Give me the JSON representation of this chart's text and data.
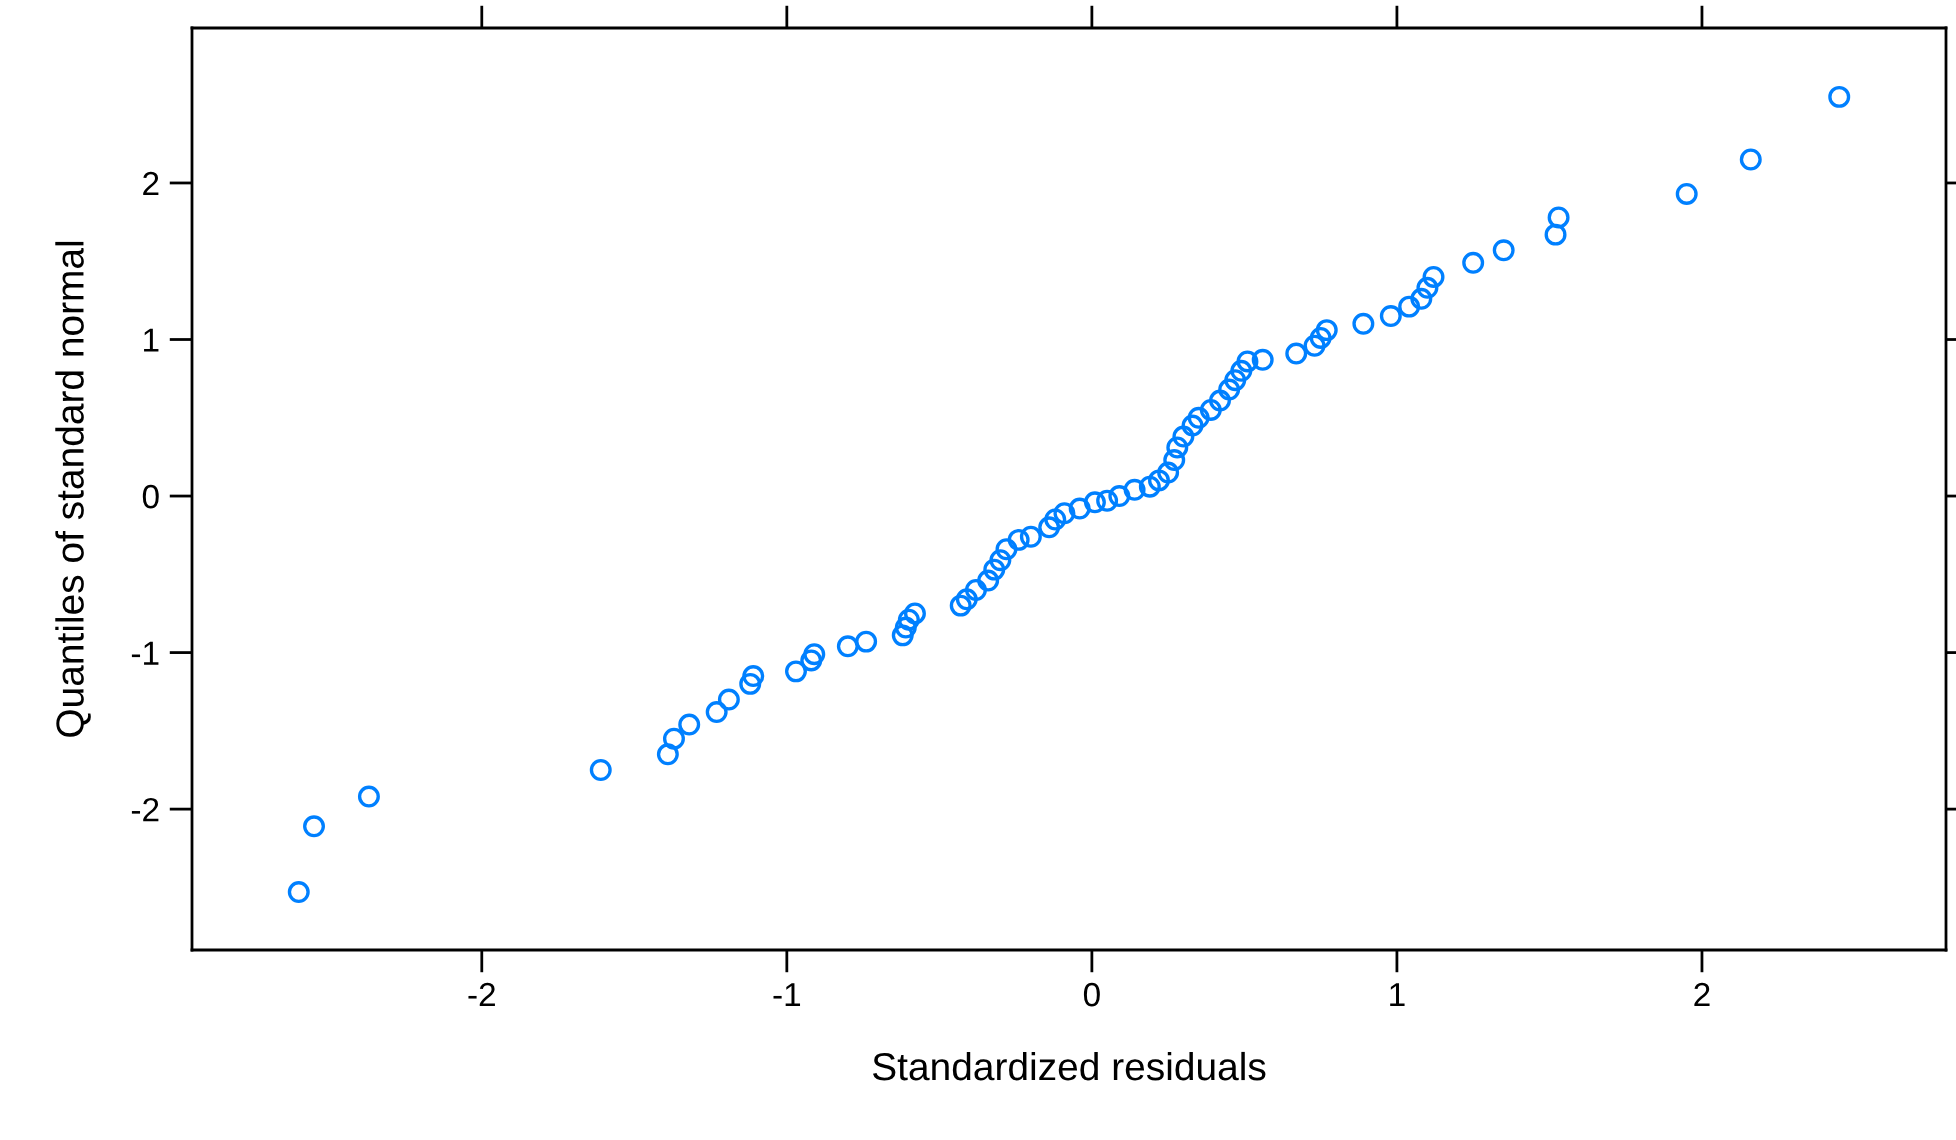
{
  "chart_data": {
    "type": "scatter",
    "xlabel": "Standardized residuals",
    "ylabel": "Quantiles of standard normal",
    "xlim": [
      -2.95,
      2.8
    ],
    "ylim": [
      -2.9,
      2.99
    ],
    "xticks": [
      -2,
      -1,
      0,
      1,
      2
    ],
    "yticks": [
      -2,
      -1,
      0,
      1,
      2
    ],
    "grid": false,
    "marker": "circle",
    "series": [
      {
        "color": "#0080ff",
        "x": [
          -2.6,
          -2.55,
          -2.37,
          -1.61,
          -1.39,
          -1.37,
          -1.32,
          -1.23,
          -1.19,
          -1.12,
          -1.11,
          -0.97,
          -0.92,
          -0.91,
          -0.8,
          -0.74,
          -0.62,
          -0.61,
          -0.6,
          -0.58,
          -0.43,
          -0.41,
          -0.38,
          -0.34,
          -0.32,
          -0.3,
          -0.28,
          -0.24,
          -0.2,
          -0.14,
          -0.12,
          -0.09,
          -0.04,
          0.01,
          0.05,
          0.09,
          0.14,
          0.19,
          0.22,
          0.25,
          0.27,
          0.28,
          0.3,
          0.33,
          0.35,
          0.39,
          0.42,
          0.45,
          0.47,
          0.49,
          0.51,
          0.56,
          0.67,
          0.73,
          0.75,
          0.77,
          0.89,
          0.98,
          1.04,
          1.08,
          1.1,
          1.12,
          1.25,
          1.35,
          1.52,
          1.53,
          1.95,
          2.16,
          2.45
        ],
        "values": [
          -2.53,
          -2.11,
          -1.92,
          -1.75,
          -1.65,
          -1.55,
          -1.46,
          -1.38,
          -1.3,
          -1.2,
          -1.15,
          -1.12,
          -1.05,
          -1.01,
          -0.96,
          -0.93,
          -0.89,
          -0.84,
          -0.79,
          -0.75,
          -0.7,
          -0.66,
          -0.6,
          -0.54,
          -0.47,
          -0.41,
          -0.34,
          -0.28,
          -0.26,
          -0.2,
          -0.15,
          -0.11,
          -0.08,
          -0.04,
          -0.03,
          0.0,
          0.04,
          0.06,
          0.1,
          0.15,
          0.23,
          0.31,
          0.38,
          0.45,
          0.5,
          0.55,
          0.61,
          0.68,
          0.74,
          0.8,
          0.86,
          0.87,
          0.91,
          0.96,
          1.01,
          1.06,
          1.1,
          1.15,
          1.21,
          1.26,
          1.33,
          1.4,
          1.49,
          1.57,
          1.67,
          1.78,
          1.93,
          2.15,
          2.55
        ]
      }
    ]
  }
}
